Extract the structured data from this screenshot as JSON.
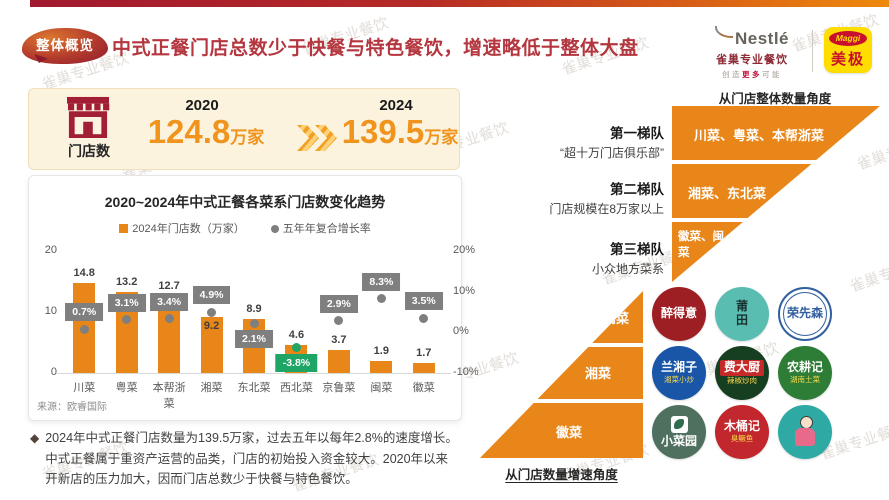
{
  "header": {
    "badge": "整体概览",
    "title": "中式正餐门店总数少于快餐与特色餐饮，增速略低于整体大盘",
    "nestle_wordmark": "Nestlé",
    "nestle_sub": "雀巢专业餐饮",
    "tagline_pre": "创造",
    "tagline_mid": "更多",
    "tagline_post": "可能",
    "maggi_wordmark": "Maggi",
    "maggi_name": "美极"
  },
  "stats": {
    "icon_label": "门店数",
    "year_from": "2020",
    "value_from": "124.8",
    "unit_from": "万家",
    "year_to": "2024",
    "value_to": "139.5",
    "unit_to": "万家"
  },
  "chart_data": {
    "type": "bar",
    "title": "2020~2024年中式正餐各菜系门店数变化趋势",
    "legend": [
      "2024年门店数（万家）",
      "五年年复合增长率"
    ],
    "categories": [
      "川菜",
      "粤菜",
      "本帮浙菜",
      "湘菜",
      "东北菜",
      "西北菜",
      "京鲁菜",
      "闽菜",
      "徽菜"
    ],
    "series": [
      {
        "name": "2024年门店数（万家）",
        "type": "bar",
        "values": [
          14.8,
          13.2,
          12.7,
          9.2,
          8.9,
          4.6,
          3.7,
          1.9,
          1.7
        ]
      },
      {
        "name": "五年年复合增长率",
        "type": "scatter",
        "values_pct": [
          0.7,
          3.1,
          3.4,
          4.9,
          2.1,
          -3.8,
          2.9,
          8.3,
          3.5
        ]
      }
    ],
    "left_axis": {
      "max": 20,
      "ticks": [
        0,
        10,
        20
      ]
    },
    "right_axis": {
      "min": -10,
      "max": 20,
      "ticks": [
        -10,
        0,
        10,
        20
      ],
      "suffix": "%"
    },
    "bar_color": "#E8861A",
    "dot_color": "#7F7F7F",
    "negative_color": "#1FA565",
    "bar_label_pos": [
      "above",
      "above",
      "above",
      "inside",
      "above",
      "above",
      "above",
      "above",
      "above"
    ],
    "rate_label_pos": [
      "above",
      "above",
      "above",
      "above",
      "below",
      "below",
      "above",
      "above",
      "above"
    ],
    "grid": "off",
    "source": "来源：欧睿国际"
  },
  "note": {
    "bullet": "◆",
    "text": "2024年中式正餐门店数量为139.5万家，过去五年以每年2.8%的速度增长。中式正餐属于重资产运营的品类，门店的初始投入资金较大。2020年以来开新店的压力加大，因而门店总数少于快餐与特色餐饮。"
  },
  "right_panel": {
    "funnel_title": "从门店整体数量角度",
    "tiers": [
      {
        "label": "第一梯队",
        "sub": "“超十万门店俱乐部”",
        "content": "川菜、粤菜、本帮浙菜"
      },
      {
        "label": "第二梯队",
        "sub": "门店规模在8万家以上",
        "content": "湘菜、东北菜"
      },
      {
        "label": "第三梯队",
        "sub": "小众地方菜系",
        "content": "徽菜、闽菜"
      }
    ],
    "pyramid_title": "从门店数量增速角度",
    "pyramid_tiers": [
      "闽菜",
      "湘菜",
      "徽菜"
    ],
    "brands": [
      {
        "name": "醉得意",
        "bg": "#9E1F23",
        "fg": "#FFFFFF"
      },
      {
        "name": "莆田",
        "bg": "#59BDB2",
        "fg": "#17322E",
        "stacked": true
      },
      {
        "name": "荣先森",
        "bg": "#FFFFFF",
        "fg": "#32609F",
        "ring": "#32609F"
      },
      {
        "name": "兰湘子",
        "sub": "湘菜小炒",
        "bg": "#1A56A8",
        "fg": "#FFFFFF",
        "subfg": "#F7D84A"
      },
      {
        "name": "费大厨",
        "sub": "辣椒炒肉",
        "bg": "#163F22",
        "fg": "#FFFFFF",
        "strip": "#C52A28",
        "subfg": "#F7D84A"
      },
      {
        "name": "农耕记",
        "sub": "湖南土菜",
        "bg": "#2E7D36",
        "fg": "#FFFFFF",
        "subfg": "#F7D84A"
      },
      {
        "name": "小菜园",
        "bg": "#50705F",
        "fg": "#FFFFFF",
        "tile": true
      },
      {
        "name": "木桶记",
        "sub": "臭鳜鱼",
        "bg": "#C1272D",
        "fg": "#FFFFFF",
        "subfg": "#F7D84A"
      },
      {
        "name": "",
        "bg": "#2FA9A4",
        "fg": "#FFFFFF",
        "person": true
      }
    ]
  },
  "watermark": "雀巢专业餐饮",
  "colors": {
    "accent_orange": "#E8861A",
    "title_red": "#B4363F",
    "stat_orange": "#F0941D",
    "bar_gradient_left": "#A2182F",
    "bar_gradient_right": "#EE8A0D"
  }
}
